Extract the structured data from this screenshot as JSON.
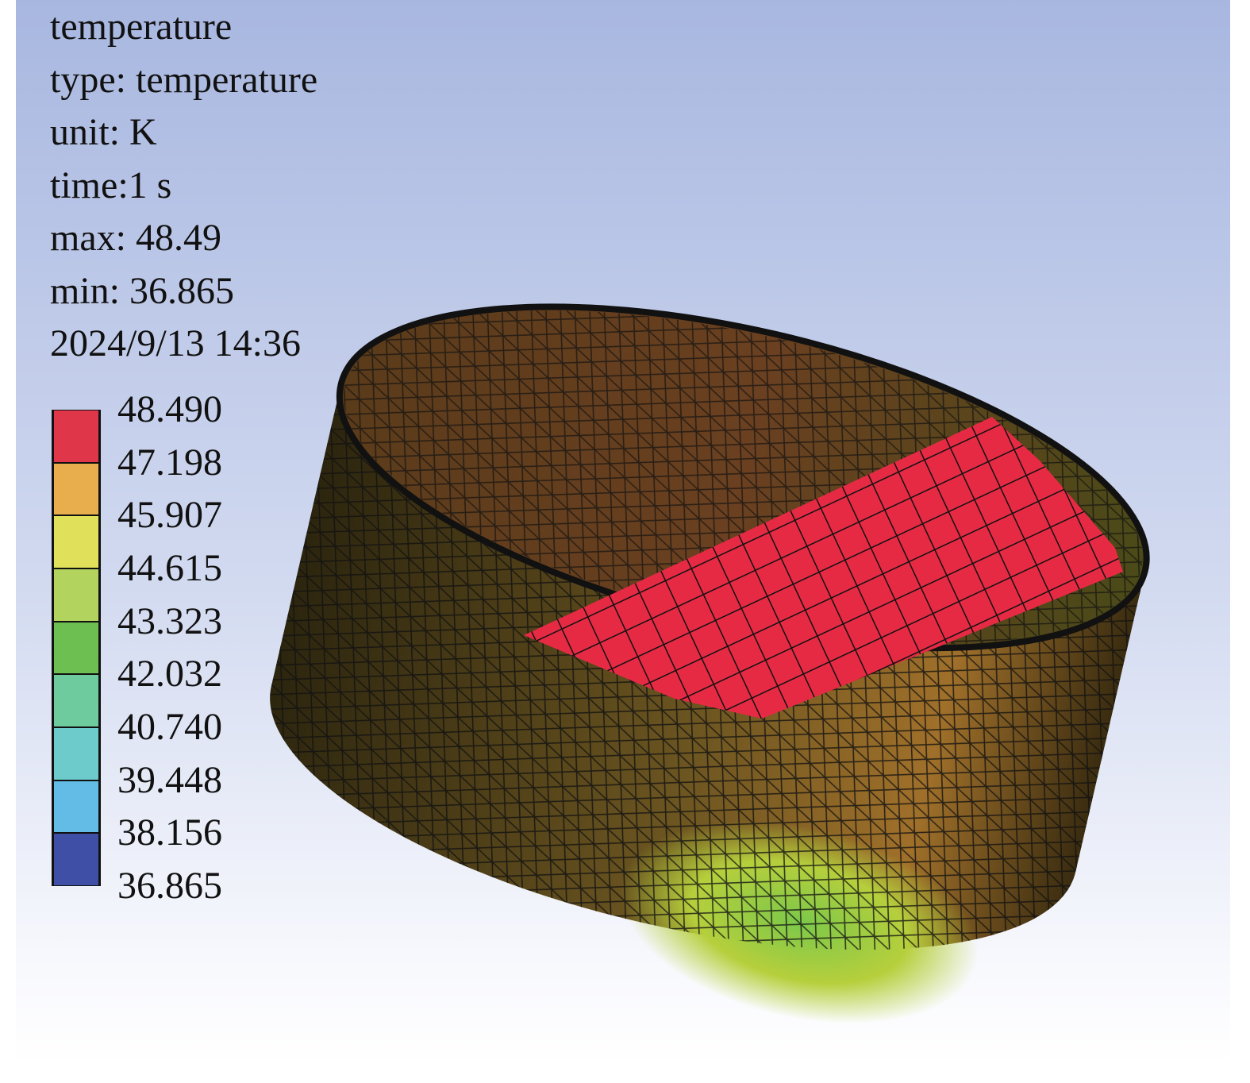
{
  "info": {
    "lines": [
      "temperature",
      "type: temperature",
      "unit: K",
      "time:1 s",
      "max: 48.49",
      "min: 36.865",
      "2024/9/13 14:36"
    ]
  },
  "legend": {
    "labels": [
      "48.490",
      "47.198",
      "45.907",
      "44.615",
      "43.323",
      "42.032",
      "40.740",
      "39.448",
      "38.156",
      "36.865"
    ],
    "colors": [
      "#e0364a",
      "#e8ad4c",
      "#e0e05a",
      "#b2d35e",
      "#6cbf50",
      "#6ecb9e",
      "#6dcbcc",
      "#62bce6",
      "#3f4fa6"
    ]
  }
}
